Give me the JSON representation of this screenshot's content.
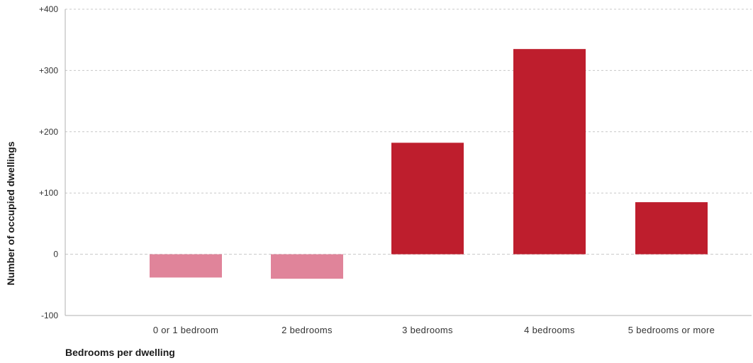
{
  "chart_data": {
    "type": "bar",
    "categories": [
      "0 or 1 bedroom",
      "2 bedrooms",
      "3 bedrooms",
      "4 bedrooms",
      "5 bedrooms or more"
    ],
    "values": [
      -38,
      -40,
      182,
      335,
      85
    ],
    "xlabel": "Bedrooms per dwelling",
    "ylabel": "Number of occupied dwellings",
    "ylim": [
      -100,
      400
    ],
    "yticks": [
      -100,
      0,
      100,
      200,
      300,
      400
    ],
    "ytick_labels": [
      "-100",
      "0",
      "+100",
      "+200",
      "+300",
      "+400"
    ],
    "grid": true,
    "colors": {
      "positive": "#be1e2d",
      "negative": "#e0849a",
      "grid": "#c8c8c8",
      "axis": "#b0b0b0"
    }
  }
}
